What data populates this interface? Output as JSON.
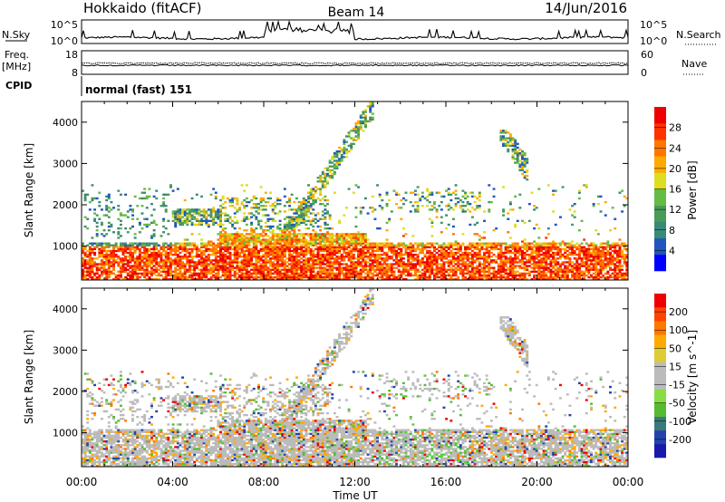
{
  "header": {
    "radar": "Hokkaido (fitACF)",
    "beam": "Beam 14",
    "date": "14/Jun/2016"
  },
  "strip_nsky": {
    "left_label": "N.Sky",
    "tick_top": "10^5",
    "tick_bottom": "10^0",
    "right_label": "N.Search"
  },
  "strip_freq": {
    "left_label_1": "Freq.",
    "left_label_2": "[MHz]",
    "tick_top": "18",
    "tick_bottom": "8",
    "right_tick_top": "60",
    "right_tick_bottom": "0",
    "right_label": "Nave"
  },
  "strip_cpid": {
    "left_label": "CPID",
    "mode_text": "normal (fast) 151"
  },
  "chart_data": [
    {
      "type": "heatmap",
      "title": "",
      "ylabel": "Slant Range [km]",
      "ylim": [
        180,
        4500
      ],
      "y_ticks": [
        "1000",
        "2000",
        "3000",
        "4000"
      ],
      "x_ticks": [
        "00:00",
        "04:00",
        "08:00",
        "12:00",
        "16:00",
        "20:00",
        "00:00"
      ],
      "xlim_hours": [
        0,
        24
      ],
      "colorbar": {
        "label": "Power [dB]",
        "ticks": [
          "4",
          "8",
          "12",
          "16",
          "20",
          "24",
          "28"
        ],
        "colors": [
          "#0000ff",
          "#2255bb",
          "#3a8a78",
          "#4a9a58",
          "#66bb44",
          "#dddd22",
          "#ffaa00",
          "#ff7700",
          "#ff3300",
          "#ee0000"
        ]
      }
    },
    {
      "type": "heatmap",
      "title": "",
      "ylabel": "Slant Range [km]",
      "xlabel": "Time UT",
      "ylim": [
        180,
        4500
      ],
      "y_ticks": [
        "1000",
        "2000",
        "3000",
        "4000"
      ],
      "x_ticks": [
        "00:00",
        "04:00",
        "08:00",
        "12:00",
        "16:00",
        "20:00",
        "00:00"
      ],
      "xlim_hours": [
        0,
        24
      ],
      "colorbar": {
        "label": "Velocity [m s^-1]",
        "ticks": [
          "200",
          "100",
          "50",
          "15",
          "-15",
          "-50",
          "-100",
          "-200"
        ],
        "colors": [
          "#1a1aaa",
          "#2244aa",
          "#3a7a7a",
          "#55bb33",
          "#88dd44",
          "#bbbbbb",
          "#bbbbbb",
          "#ddcc33",
          "#ffaa00",
          "#ff7700",
          "#ff4400",
          "#ee0000"
        ]
      }
    }
  ]
}
